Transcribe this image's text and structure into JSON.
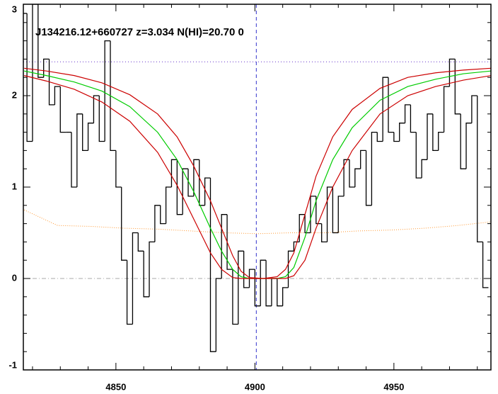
{
  "chart_data": {
    "type": "spectrum",
    "title": "J134216.12+660727 z=3.034 N(HI)=20.70 0",
    "xlim": [
      4816.7,
      4984.9
    ],
    "ylim": [
      -1,
      3.0
    ],
    "xticks": [
      4850,
      4900,
      4950
    ],
    "xminorticks": [
      4820,
      4830,
      4840,
      4860,
      4870,
      4880,
      4890,
      4910,
      4920,
      4930,
      4940,
      4960,
      4970,
      4980
    ],
    "yticks": [
      -1,
      0,
      1,
      2,
      3
    ],
    "yminorticks": [
      -0.8,
      -0.6,
      -0.4,
      -0.2,
      0.2,
      0.4,
      0.6,
      0.8,
      1.2,
      1.4,
      1.6,
      1.8,
      2.2,
      2.4,
      2.6,
      2.8
    ],
    "flux": {
      "color": "#000000",
      "x": [
        4817,
        4819,
        4821,
        4823,
        4825,
        4827,
        4829,
        4831,
        4833,
        4835,
        4837,
        4839,
        4841,
        4843,
        4845,
        4847,
        4849,
        4851,
        4853,
        4855,
        4857,
        4859,
        4861,
        4863,
        4865,
        4867,
        4869,
        4871,
        4873,
        4875,
        4877,
        4879,
        4881,
        4883,
        4885,
        4887,
        4889,
        4891,
        4893,
        4895,
        4897,
        4899,
        4901,
        4903,
        4905,
        4907,
        4909,
        4911,
        4913,
        4915,
        4917,
        4919,
        4921,
        4923,
        4925,
        4927,
        4929,
        4931,
        4933,
        4935,
        4937,
        4939,
        4941,
        4943,
        4945,
        4947,
        4949,
        4951,
        4953,
        4955,
        4957,
        4959,
        4961,
        4963,
        4965,
        4967,
        4969,
        4971,
        4973,
        4975,
        4977,
        4979,
        4981,
        4983
      ],
      "values": [
        2.9,
        1.5,
        3.0,
        2.2,
        2.4,
        1.9,
        2.1,
        1.6,
        1.6,
        1.0,
        1.8,
        1.4,
        1.7,
        2.0,
        1.5,
        2.6,
        1.4,
        1.0,
        0.2,
        -0.5,
        0.5,
        0.3,
        -0.2,
        0.4,
        0.8,
        0.6,
        1.0,
        1.3,
        0.7,
        1.2,
        0.9,
        1.3,
        0.8,
        1.1,
        -0.8,
        0.0,
        0.7,
        0.1,
        -0.5,
        0.3,
        -0.1,
        0.1,
        -0.3,
        0.2,
        -0.3,
        0.0,
        -0.3,
        -0.1,
        0.3,
        0.4,
        0.7,
        0.5,
        0.9,
        0.6,
        0.4,
        1.0,
        0.5,
        0.9,
        1.3,
        1.0,
        1.2,
        1.4,
        0.8,
        1.6,
        1.5,
        2.2,
        1.6,
        1.5,
        1.7,
        1.9,
        1.6,
        1.1,
        1.3,
        1.8,
        1.4,
        1.6,
        2.1,
        2.4,
        1.8,
        1.2,
        1.7,
        2.0,
        0.4,
        -0.1
      ]
    },
    "models": {
      "x": [
        4817,
        4825,
        4835,
        4845,
        4855,
        4865,
        4872,
        4878,
        4884,
        4888,
        4892,
        4895,
        4898,
        4903,
        4908,
        4911,
        4914,
        4918,
        4922,
        4928,
        4935,
        4945,
        4955,
        4965,
        4975,
        4985
      ],
      "series": [
        {
          "color": "#00cc00",
          "values": [
            2.27,
            2.22,
            2.15,
            2.05,
            1.88,
            1.6,
            1.3,
            0.95,
            0.55,
            0.3,
            0.1,
            0.02,
            0,
            0,
            0,
            0.02,
            0.12,
            0.45,
            0.85,
            1.3,
            1.65,
            1.95,
            2.1,
            2.18,
            2.24,
            2.27
          ]
        },
        {
          "color": "#cc0000",
          "values": [
            2.22,
            2.16,
            2.07,
            1.93,
            1.72,
            1.38,
            1.02,
            0.65,
            0.28,
            0.1,
            0.01,
            0,
            0,
            0,
            0,
            0,
            0.03,
            0.2,
            0.55,
            1.0,
            1.4,
            1.8,
            2.0,
            2.1,
            2.17,
            2.22
          ]
        },
        {
          "color": "#cc0000",
          "values": [
            2.3,
            2.27,
            2.22,
            2.14,
            2.01,
            1.8,
            1.55,
            1.23,
            0.85,
            0.55,
            0.25,
            0.08,
            0.01,
            0,
            0.02,
            0.1,
            0.28,
            0.7,
            1.12,
            1.55,
            1.85,
            2.08,
            2.2,
            2.25,
            2.28,
            2.3
          ]
        }
      ]
    },
    "error": {
      "color": "#ff9933",
      "x": [
        4817,
        4829,
        4841,
        4853,
        4865,
        4877,
        4889,
        4901,
        4913,
        4925,
        4937,
        4949,
        4961,
        4973,
        4985
      ],
      "values": [
        0.75,
        0.58,
        0.57,
        0.55,
        0.54,
        0.52,
        0.5,
        0.49,
        0.5,
        0.5,
        0.52,
        0.53,
        0.55,
        0.58,
        0.62
      ]
    },
    "continuum": {
      "value": 2.37,
      "color": "#6633cc"
    },
    "zero_line": {
      "value": 0,
      "color": "#aaaaaa"
    },
    "center_line": {
      "value": 4900.5,
      "color": "#3333cc"
    }
  }
}
